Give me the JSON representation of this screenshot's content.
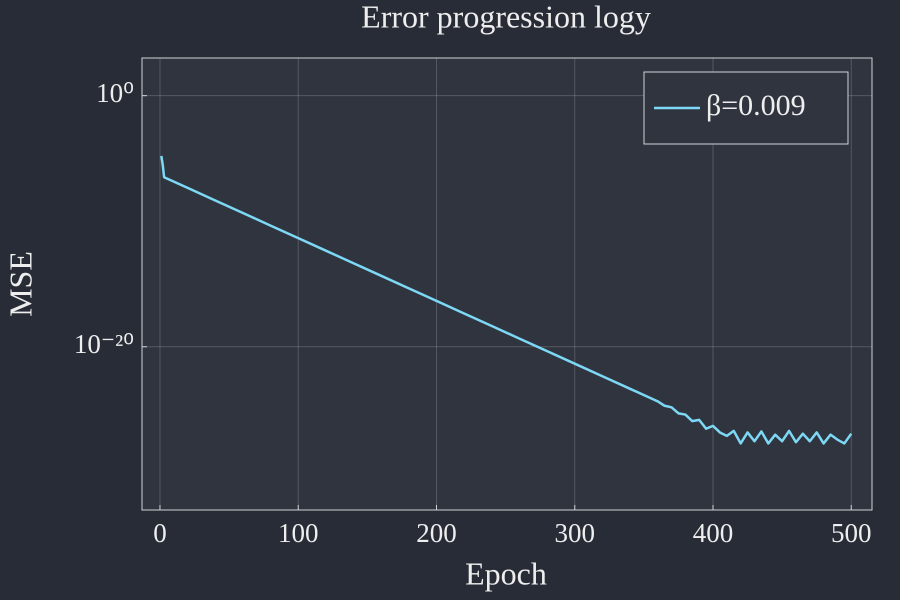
{
  "chart_data": {
    "type": "line",
    "title": "Error progression logy",
    "xlabel": "Epoch",
    "ylabel": "MSE",
    "x": [
      1,
      2,
      3,
      20,
      40,
      60,
      80,
      100,
      120,
      140,
      160,
      180,
      200,
      220,
      240,
      260,
      280,
      300,
      320,
      340,
      360,
      365,
      370,
      375,
      380,
      385,
      390,
      395,
      400,
      405,
      410,
      415,
      420,
      425,
      430,
      435,
      440,
      445,
      450,
      455,
      460,
      465,
      470,
      475,
      480,
      485,
      490,
      495,
      500
    ],
    "series": [
      {
        "name": "β=0.009",
        "color": "#7dd8f5",
        "values": [
          1.6e-05,
          3e-06,
          3.2e-07,
          4.5e-08,
          4.5e-09,
          4.5e-10,
          4.5e-11,
          4.5e-12,
          4.5e-13,
          4.5e-14,
          4.5e-15,
          4.5e-16,
          4.5e-17,
          4.5e-18,
          4.5e-19,
          4.5e-20,
          4.5e-21,
          4.5e-22,
          4.5e-23,
          4.5e-24,
          4.5e-25,
          2e-25,
          1.5e-25,
          5e-26,
          4e-26,
          1.2e-26,
          1.5e-26,
          3e-27,
          5e-27,
          1.5e-27,
          8e-28,
          2e-27,
          2e-28,
          1.5e-27,
          3e-28,
          1.8e-27,
          2e-28,
          1e-27,
          3e-28,
          2e-27,
          2.5e-28,
          1.2e-27,
          3e-28,
          1.5e-27,
          2e-28,
          1e-27,
          4e-28,
          2e-28,
          1.2e-27
        ]
      }
    ],
    "xlim": [
      -13,
      515
    ],
    "xticks": [
      0,
      100,
      200,
      300,
      400,
      500
    ],
    "ylim": [
      1e-33,
      1000
    ],
    "yscale": "log",
    "yticks": [
      {
        "value": 1,
        "label": "10⁰"
      },
      {
        "value": 1e-20,
        "label": "10⁻²⁰"
      }
    ],
    "grid": true,
    "legend": "top-right"
  }
}
